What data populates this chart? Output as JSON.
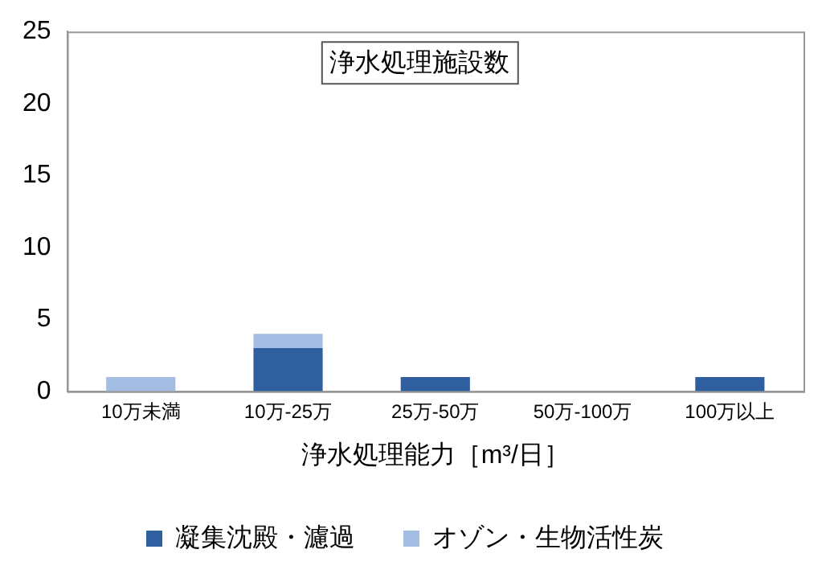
{
  "chart_data": {
    "type": "bar",
    "title": "浄水処理施設数",
    "xlabel": "浄水処理能力［m³/日］",
    "stacked": true,
    "legend": "bottom",
    "grid": false,
    "categories": [
      "10万未満",
      "10万-25万",
      "25万-50万",
      "50万-100万",
      "100万以上"
    ],
    "series": [
      {
        "name": "凝集沈殿・濾過",
        "color": "#2f5f9e",
        "values": [
          0,
          3,
          1,
          0,
          1
        ]
      },
      {
        "name": "オゾン・生物活性炭",
        "color": "#a3bde3",
        "values": [
          1,
          1,
          0,
          0,
          0
        ]
      }
    ],
    "ylim": [
      0,
      25
    ],
    "yticks": [
      0,
      5,
      10,
      15,
      20,
      25
    ]
  }
}
